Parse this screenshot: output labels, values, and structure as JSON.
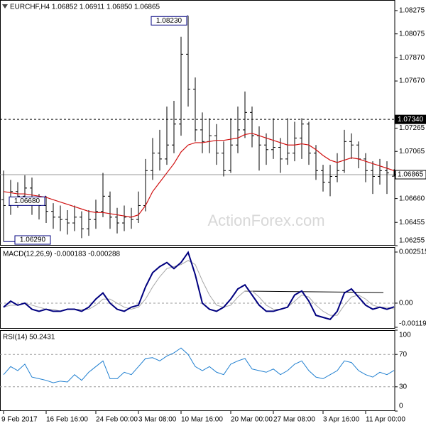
{
  "chart_data": [
    {
      "type": "ohlc",
      "title": "EURCHF,H4  1.06852 1.06911 1.06850 1.06865",
      "watermark": "ActionForex.com",
      "categories": [
        "9 Feb 2017",
        null,
        null,
        null,
        null,
        null,
        "16 Feb 16:00",
        null,
        null,
        null,
        null,
        null,
        null,
        "24 Feb 00:00",
        null,
        null,
        null,
        null,
        null,
        "3 Mar 08:00",
        null,
        null,
        null,
        null,
        null,
        "10 Mar 16:00",
        null,
        null,
        null,
        null,
        null,
        null,
        "20 Mar 00:00",
        null,
        null,
        null,
        null,
        null,
        "27 Mar 08:00",
        null,
        null,
        null,
        null,
        null,
        null,
        "3 Apr 16:00",
        null,
        null,
        null,
        null,
        null,
        "11 Apr 00:00",
        null,
        null,
        null,
        null
      ],
      "open": [
        1.0665,
        1.066,
        1.0672,
        1.0668,
        1.0675,
        1.0663,
        1.066,
        1.0655,
        1.065,
        1.0648,
        1.0645,
        1.065,
        1.064,
        1.0648,
        1.0655,
        1.0668,
        1.065,
        1.0645,
        1.065,
        1.0648,
        1.066,
        1.069,
        1.0705,
        1.07,
        1.0712,
        1.073,
        1.079,
        1.076,
        1.0725,
        1.0715,
        1.072,
        1.0705,
        1.069,
        1.0712,
        1.0725,
        1.074,
        1.072,
        1.0712,
        1.0708,
        1.071,
        1.07,
        1.0705,
        1.0718,
        1.073,
        1.0705,
        1.069,
        1.068,
        1.0685,
        1.069,
        1.0715,
        1.0712,
        1.07,
        1.069,
        1.0685,
        1.069,
        1.06852
      ],
      "high": [
        1.069,
        1.0682,
        1.068,
        1.0686,
        1.0684,
        1.067,
        1.0668,
        1.0662,
        1.066,
        1.0656,
        1.066,
        1.0655,
        1.0656,
        1.0665,
        1.0688,
        1.0672,
        1.0658,
        1.066,
        1.0658,
        1.0672,
        1.07,
        1.0718,
        1.0725,
        1.0745,
        1.075,
        1.0805,
        1.0823,
        1.077,
        1.074,
        1.0735,
        1.073,
        1.0715,
        1.0735,
        1.0745,
        1.0758,
        1.0745,
        1.0728,
        1.0722,
        1.0735,
        1.0718,
        1.0735,
        1.0732,
        1.0735,
        1.0732,
        1.0712,
        1.0695,
        1.0695,
        1.0705,
        1.0725,
        1.0722,
        1.0715,
        1.0705,
        1.0698,
        1.07,
        1.0698,
        1.06911
      ],
      "low": [
        1.0629,
        1.0652,
        1.0658,
        1.066,
        1.0652,
        1.0648,
        1.0645,
        1.064,
        1.0638,
        1.0635,
        1.0638,
        1.0632,
        1.0634,
        1.064,
        1.065,
        1.064,
        1.0636,
        1.0638,
        1.064,
        1.0645,
        1.0655,
        1.0682,
        1.069,
        1.0695,
        1.0705,
        1.072,
        1.0745,
        1.0715,
        1.0705,
        1.0705,
        1.0695,
        1.0685,
        1.0688,
        1.0705,
        1.0718,
        1.071,
        1.069,
        1.0695,
        1.07,
        1.0688,
        1.0695,
        1.0698,
        1.07,
        1.0695,
        1.0682,
        1.0672,
        1.0668,
        1.068,
        1.0688,
        1.07,
        1.0692,
        1.068,
        1.067,
        1.0678,
        1.067,
        1.0685
      ],
      "close": [
        1.066,
        1.0672,
        1.0668,
        1.0675,
        1.0663,
        1.066,
        1.0655,
        1.065,
        1.0648,
        1.0645,
        1.065,
        1.064,
        1.0648,
        1.0655,
        1.0668,
        1.065,
        1.0645,
        1.065,
        1.0648,
        1.066,
        1.069,
        1.0705,
        1.07,
        1.0712,
        1.073,
        1.079,
        1.076,
        1.0725,
        1.0715,
        1.072,
        1.0705,
        1.069,
        1.0712,
        1.0725,
        1.074,
        1.072,
        1.0712,
        1.0708,
        1.071,
        1.07,
        1.0705,
        1.0718,
        1.073,
        1.0705,
        1.069,
        1.068,
        1.0685,
        1.069,
        1.0715,
        1.0712,
        1.07,
        1.069,
        1.0685,
        1.069,
        1.0688,
        1.06865
      ],
      "color": "#000000",
      "ma": {
        "color": "#d01010",
        "values": [
          1.0672,
          1.0671,
          1.067,
          1.067,
          1.0669,
          1.0668,
          1.0667,
          1.0665,
          1.0663,
          1.0661,
          1.0659,
          1.0657,
          1.0655,
          1.0654,
          1.0654,
          1.0653,
          1.0652,
          1.0651,
          1.065,
          1.0652,
          1.066,
          1.0672,
          1.068,
          1.0688,
          1.0696,
          1.0706,
          1.0712,
          1.0714,
          1.0714,
          1.0715,
          1.0716,
          1.0716,
          1.0717,
          1.0718,
          1.0721,
          1.0722,
          1.072,
          1.0718,
          1.0716,
          1.0714,
          1.0712,
          1.0712,
          1.0713,
          1.0712,
          1.0708,
          1.0703,
          1.0699,
          1.0697,
          1.0699,
          1.0701,
          1.07,
          1.0698,
          1.0696,
          1.0694,
          1.0692,
          1.069
        ]
      },
      "ylim": [
        1.06255,
        1.08366
      ],
      "yticks": [
        1.08275,
        1.08075,
        {
          "value": 1.0787,
          "label": "1.07870"
        },
        {
          "value": 1.0767,
          "label": "1.07670"
        },
        1.07265,
        1.07065,
        {
          "value": 1.0666,
          "label": "1.06660"
        },
        1.06455,
        1.06255
      ],
      "annotations": [
        {
          "value": 1.0823,
          "label": "1.08230"
        },
        {
          "value": 1.0629,
          "label": "1.06290"
        },
        {
          "value": 1.0668,
          "label": "1.06680"
        }
      ],
      "hlines": [
        {
          "value": 1.0734,
          "label": "1.07340",
          "dash": true
        },
        {
          "value": 1.06865,
          "label": "1.06865",
          "dash": false
        }
      ],
      "grid": false
    },
    {
      "type": "line",
      "title": "MACD(12,26,9) -0.000183 -0.000288",
      "series": [
        {
          "color": "#00007f",
          "values": [
            -0.0002,
            0.0001,
            -0.0001,
            0.0,
            -0.0003,
            -0.0004,
            -0.0003,
            -0.0004,
            -0.0004,
            -0.0003,
            -0.0003,
            -0.0004,
            -0.0002,
            0.0002,
            0.0005,
            0.0,
            -0.0003,
            -0.0004,
            -0.0002,
            -0.0001,
            0.0008,
            0.0015,
            0.0018,
            0.002,
            0.0017,
            0.002,
            0.0025,
            0.0014,
            0.0,
            -0.0003,
            -0.0004,
            -0.0002,
            0.0002,
            0.0007,
            0.0009,
            0.0004,
            -0.0001,
            -0.0004,
            -0.0004,
            -0.0003,
            -0.0002,
            0.0004,
            0.0006,
            0.0001,
            -0.0006,
            -0.0007,
            -0.0008,
            -0.0004,
            0.0005,
            0.0007,
            0.0003,
            -0.0001,
            -0.0003,
            -0.0002,
            -0.0003,
            -0.000183
          ]
        },
        {
          "color": "#a8a8a8",
          "values": [
            -0.0002,
            -0.0001,
            -0.0001,
            0.0,
            -0.0001,
            -0.0002,
            -0.0003,
            -0.0003,
            -0.0004,
            -0.0003,
            -0.0003,
            -0.0003,
            -0.0003,
            -0.0001,
            0.0002,
            0.0002,
            0.0,
            -0.0002,
            -0.0003,
            -0.0002,
            0.0002,
            0.0008,
            0.0013,
            0.0017,
            0.0018,
            0.0019,
            0.0021,
            0.0019,
            0.0011,
            0.0004,
            -0.0001,
            -0.0002,
            -0.0001,
            0.0003,
            0.0006,
            0.0006,
            0.0003,
            -0.0001,
            -0.0003,
            -0.0003,
            -0.0002,
            0.0001,
            0.0004,
            0.0003,
            -0.0001,
            -0.0004,
            -0.0006,
            -0.0006,
            -0.0001,
            0.0003,
            0.0004,
            0.0002,
            -0.0001,
            -0.0002,
            -0.0002,
            -0.000288
          ]
        }
      ],
      "ylim": [
        -0.00126,
        0.00276
      ],
      "yticks": [
        0.002515,
        {
          "value": 0,
          "label": "0.00"
        },
        -0.00119
      ],
      "grid": true
    },
    {
      "type": "line",
      "title": "RSI(14) 50.2431",
      "series": [
        {
          "color": "#1f7fd0",
          "values": [
            45,
            55,
            50,
            58,
            42,
            40,
            38,
            35,
            37,
            36,
            45,
            38,
            48,
            55,
            62,
            40,
            40,
            48,
            45,
            55,
            65,
            66,
            62,
            68,
            72,
            78,
            70,
            55,
            50,
            55,
            48,
            45,
            58,
            62,
            65,
            52,
            50,
            48,
            52,
            45,
            50,
            58,
            62,
            50,
            42,
            40,
            45,
            50,
            62,
            60,
            50,
            45,
            42,
            48,
            45,
            50.2431
          ]
        }
      ],
      "ylim": [
        0,
        100
      ],
      "yticks": [
        100,
        70,
        30,
        0
      ],
      "grid": true
    }
  ]
}
